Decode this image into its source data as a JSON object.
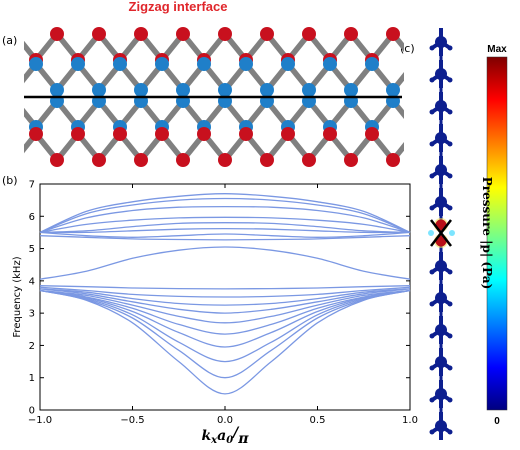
{
  "figure": {
    "title": "Zigzag interface",
    "panel_labels": {
      "a": "(a)",
      "b": "(b)",
      "c": "(c)"
    },
    "colors": {
      "title": "#e0262b",
      "atom_red": "#c8101e",
      "atom_blue": "#1f7fc9",
      "bond": "#808080",
      "band": "#7b98e3",
      "interface": "#000000",
      "chain": "#0d1f8f"
    }
  },
  "colorbar": {
    "max_label": "Max",
    "min_label": "0",
    "label": "Pressure |p| (Pa)"
  },
  "chart_data": {
    "type": "line",
    "xlabel": "k_x a_0 / π",
    "ylabel": "Frequency (kHz)",
    "xlim": [
      -1.0,
      1.0
    ],
    "ylim": [
      0,
      7
    ],
    "xticks": [
      "−1.0",
      "−0.5",
      "0.0",
      "0.5",
      "1.0"
    ],
    "yticks": [
      "0",
      "1",
      "2",
      "3",
      "4",
      "5",
      "6",
      "7"
    ],
    "grid": false,
    "legend": "none",
    "x": [
      -1.0,
      -0.75,
      -0.5,
      -0.25,
      0.0,
      0.25,
      0.5,
      0.75,
      1.0
    ],
    "series": [
      {
        "values": [
          3.7,
          3.4,
          2.7,
          1.5,
          0.5,
          1.5,
          2.7,
          3.4,
          3.7
        ]
      },
      {
        "values": [
          3.7,
          3.42,
          2.85,
          1.85,
          1.0,
          1.85,
          2.85,
          3.42,
          3.7
        ]
      },
      {
        "values": [
          3.7,
          3.45,
          2.95,
          2.1,
          1.5,
          2.1,
          2.95,
          3.45,
          3.7
        ]
      },
      {
        "values": [
          3.7,
          3.48,
          3.05,
          2.4,
          1.95,
          2.4,
          3.05,
          3.48,
          3.7
        ]
      },
      {
        "values": [
          3.7,
          3.5,
          3.15,
          2.65,
          2.35,
          2.65,
          3.15,
          3.5,
          3.7
        ]
      },
      {
        "values": [
          3.7,
          3.55,
          3.25,
          2.9,
          2.7,
          2.9,
          3.25,
          3.55,
          3.7
        ]
      },
      {
        "values": [
          3.75,
          3.6,
          3.35,
          3.12,
          3.0,
          3.12,
          3.35,
          3.6,
          3.75
        ]
      },
      {
        "values": [
          3.75,
          3.65,
          3.45,
          3.3,
          3.25,
          3.3,
          3.45,
          3.65,
          3.75
        ]
      },
      {
        "values": [
          3.8,
          3.7,
          3.58,
          3.52,
          3.5,
          3.52,
          3.58,
          3.7,
          3.8
        ]
      },
      {
        "values": [
          3.85,
          3.82,
          3.78,
          3.76,
          3.75,
          3.76,
          3.78,
          3.82,
          3.85
        ]
      },
      {
        "values": [
          4.05,
          4.3,
          4.7,
          4.95,
          5.05,
          4.95,
          4.7,
          4.3,
          4.05
        ]
      },
      {
        "values": [
          5.4,
          5.35,
          5.3,
          5.28,
          5.27,
          5.28,
          5.3,
          5.35,
          5.4
        ]
      },
      {
        "values": [
          5.5,
          5.4,
          5.35,
          5.4,
          5.45,
          5.4,
          5.35,
          5.4,
          5.5
        ]
      },
      {
        "values": [
          5.5,
          5.5,
          5.55,
          5.6,
          5.62,
          5.6,
          5.55,
          5.5,
          5.5
        ]
      },
      {
        "values": [
          5.5,
          5.55,
          5.68,
          5.78,
          5.8,
          5.78,
          5.68,
          5.55,
          5.5
        ]
      },
      {
        "values": [
          5.5,
          5.75,
          5.88,
          5.95,
          5.97,
          5.95,
          5.88,
          5.75,
          5.5
        ]
      },
      {
        "values": [
          5.5,
          5.95,
          6.18,
          6.28,
          6.3,
          6.28,
          6.18,
          5.95,
          5.5
        ]
      },
      {
        "values": [
          5.5,
          6.08,
          6.35,
          6.5,
          6.55,
          6.5,
          6.35,
          6.08,
          5.5
        ]
      },
      {
        "values": [
          5.5,
          6.15,
          6.45,
          6.62,
          6.7,
          6.62,
          6.45,
          6.15,
          5.5
        ]
      }
    ]
  }
}
